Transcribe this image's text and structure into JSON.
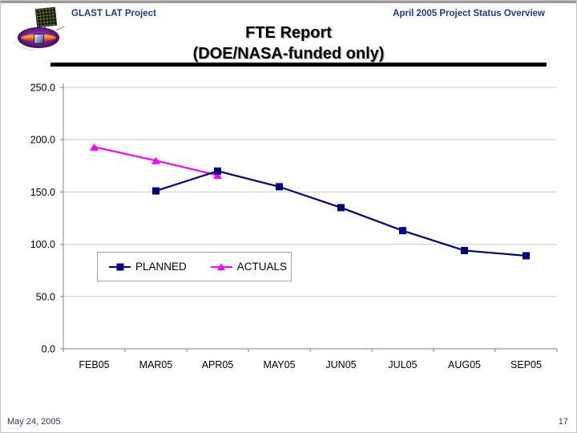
{
  "slide": {
    "header": {
      "project": "GLAST LAT Project",
      "status": "April 2005 Project Status Overview"
    },
    "title": {
      "line1": "FTE Report",
      "line2": "(DOE/NASA-funded only)"
    },
    "footer": {
      "date": "May 24, 2005",
      "page": "17"
    }
  },
  "icons": {
    "logo": "glast-mission-logo"
  },
  "colors": {
    "header_text": "#1F3A8C",
    "title_text": "#000000",
    "footer_text": "#333366",
    "gridline": "#C8C8C8",
    "axis": "#808080",
    "planned": "#000080",
    "actuals": "#FF00FF"
  },
  "chart_data": {
    "type": "line",
    "title": "",
    "xlabel": "",
    "ylabel": "",
    "categories": [
      "FEB05",
      "MAR05",
      "APR05",
      "MAY05",
      "JUN05",
      "JUL05",
      "AUG05",
      "SEP05"
    ],
    "series": [
      {
        "name": "PLANNED",
        "color": "#000080",
        "marker": "square",
        "values": [
          null,
          151,
          170,
          155,
          135,
          113,
          94,
          89
        ]
      },
      {
        "name": "ACTUALS",
        "color": "#FF00FF",
        "marker": "triangle",
        "values": [
          193,
          180,
          166,
          null,
          null,
          null,
          null,
          null
        ]
      }
    ],
    "ylim": [
      0,
      250
    ],
    "ytick_step": 50,
    "ytick_labels": [
      "0.0",
      "50.0",
      "100.0",
      "150.0",
      "200.0",
      "250.0"
    ],
    "grid": true,
    "legend": {
      "position": "inside-lower-left",
      "entries": [
        "PLANNED",
        "ACTUALS"
      ]
    }
  }
}
